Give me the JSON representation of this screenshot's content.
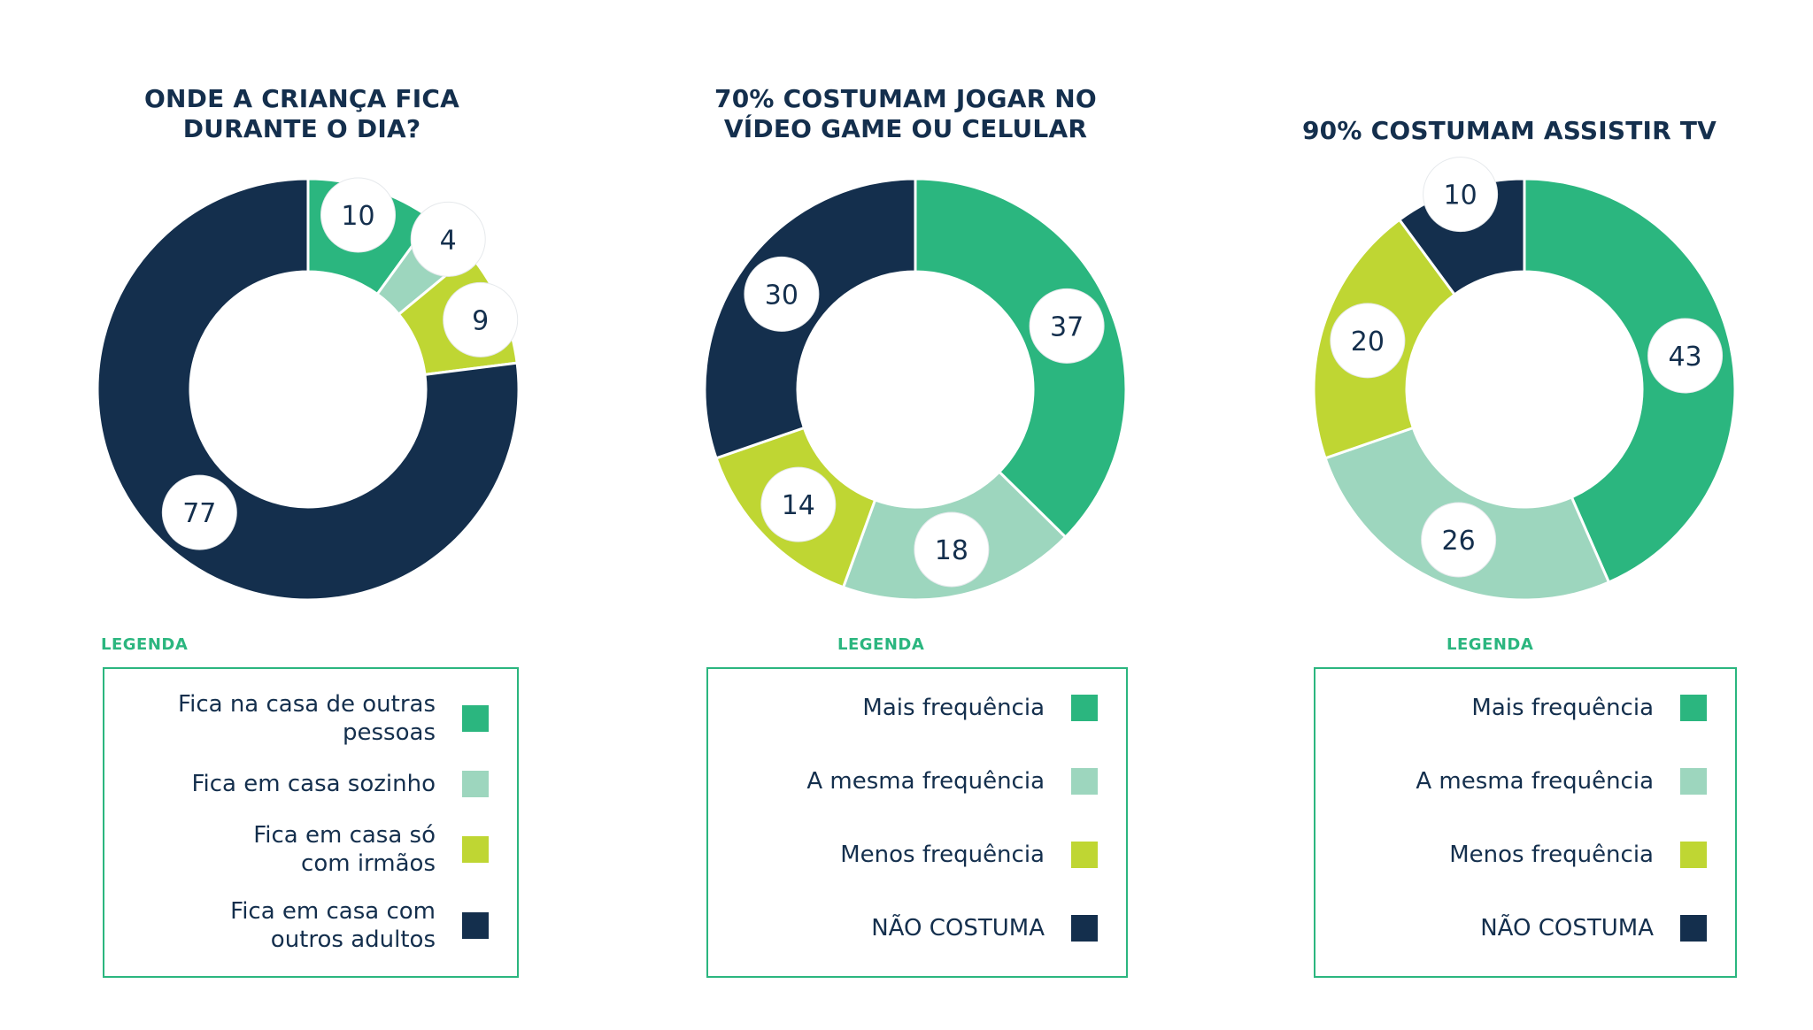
{
  "colors": {
    "verde": "#2bb67f",
    "verde_claro": "#9dd6be",
    "lima": "#bfd633",
    "marinho": "#142f4d",
    "borda_legenda": "#2bb67f"
  },
  "chart_data": [
    {
      "type": "pie",
      "title": [
        "ONDE A CRIANÇA FICA",
        "DURANTE O DIA?"
      ],
      "legend_caption": "LEGENDA",
      "categories": [
        [
          "Fica na casa de outras",
          "pessoas"
        ],
        [
          "Fica em casa sozinho"
        ],
        [
          "Fica em casa só",
          "com irmãos"
        ],
        [
          "Fica em casa com",
          "outros adultos"
        ]
      ],
      "values": [
        10,
        4,
        9,
        77
      ],
      "labels": [
        "10",
        "4",
        "9",
        "77"
      ],
      "colors": [
        "#2bb67f",
        "#9dd6be",
        "#bfd633",
        "#142f4d"
      ],
      "legend_placement": "bottom"
    },
    {
      "type": "pie",
      "title": [
        "70% COSTUMAM JOGAR NO",
        "VÍDEO GAME OU CELULAR"
      ],
      "legend_caption": "LEGENDA",
      "categories": [
        [
          "Mais frequência"
        ],
        [
          "A mesma frequência"
        ],
        [
          "Menos frequência"
        ],
        [
          "NÃO COSTUMA"
        ]
      ],
      "values": [
        37,
        18,
        14,
        30
      ],
      "labels": [
        "37",
        "18",
        "14",
        "30"
      ],
      "colors": [
        "#2bb67f",
        "#9dd6be",
        "#bfd633",
        "#142f4d"
      ],
      "legend_placement": "bottom"
    },
    {
      "type": "pie",
      "title": [
        "90% COSTUMAM ASSISTIR TV"
      ],
      "legend_caption": "LEGENDA",
      "categories": [
        [
          "Mais frequência"
        ],
        [
          "A mesma frequência"
        ],
        [
          "Menos frequência"
        ],
        [
          "NÃO COSTUMA"
        ]
      ],
      "values": [
        43,
        26,
        20,
        10
      ],
      "labels": [
        "43",
        "26",
        "20",
        "10"
      ],
      "colors": [
        "#2bb67f",
        "#9dd6be",
        "#bfd633",
        "#142f4d"
      ],
      "legend_placement": "bottom"
    }
  ]
}
